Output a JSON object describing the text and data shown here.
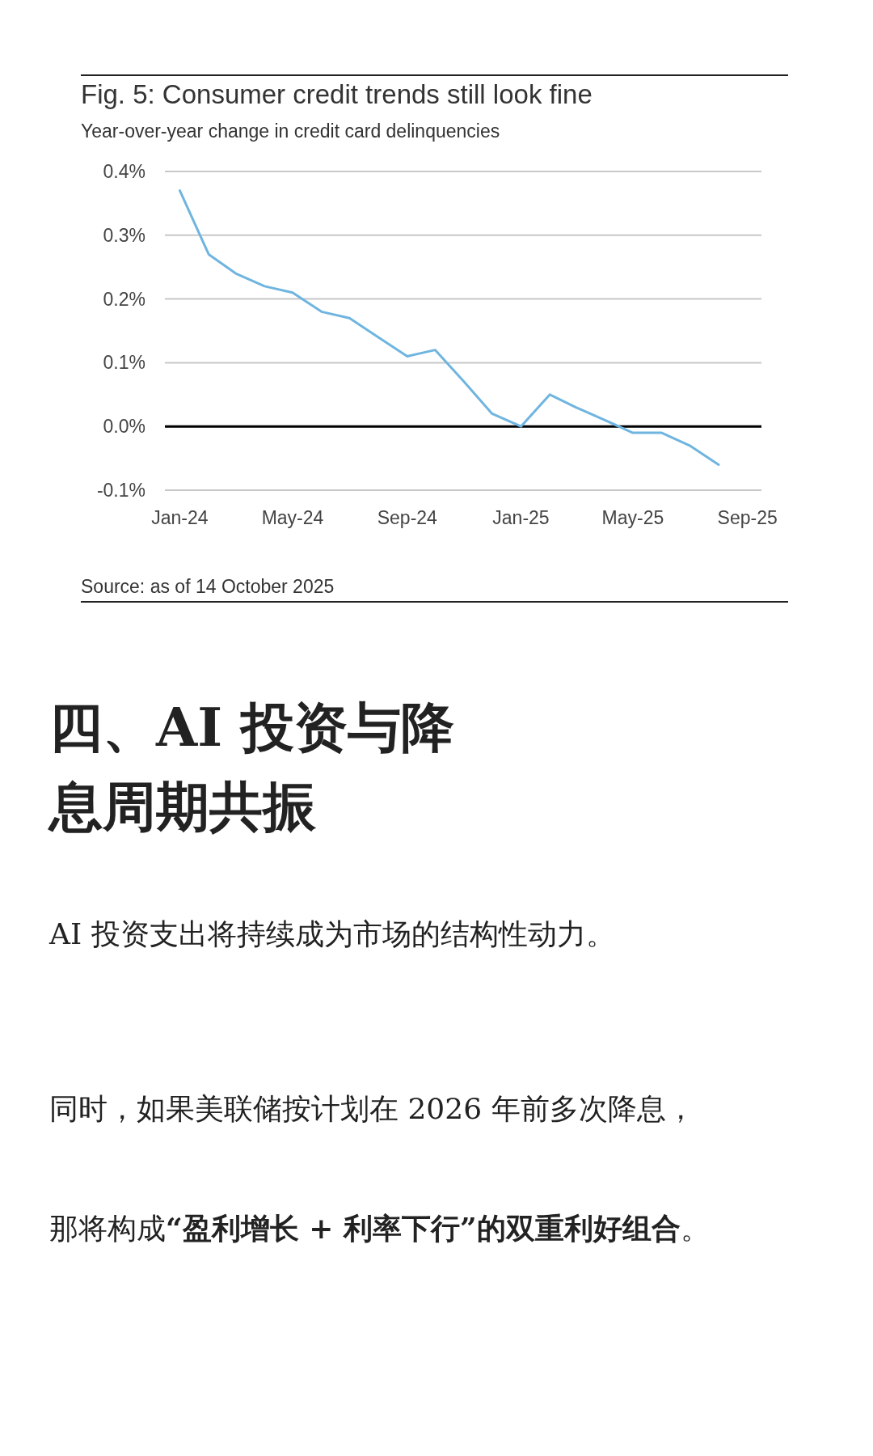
{
  "chart_data": {
    "type": "line",
    "title": "Fig. 5: Consumer credit trends still look fine",
    "subtitle": "Year-over-year change in credit card delinquencies",
    "x": [
      "2024-01",
      "2024-02",
      "2024-03",
      "2024-04",
      "2024-05",
      "2024-06",
      "2024-07",
      "2024-08",
      "2024-09",
      "2024-10",
      "2024-11",
      "2024-12",
      "2025-01",
      "2025-02",
      "2025-03",
      "2025-04",
      "2025-05",
      "2025-06",
      "2025-07",
      "2025-08"
    ],
    "series": [
      {
        "color": "#6fb5e0",
        "values": [
          0.37,
          0.27,
          0.24,
          0.22,
          0.21,
          0.18,
          0.17,
          0.14,
          0.11,
          0.12,
          0.07,
          0.02,
          0.0,
          0.05,
          0.03,
          0.01,
          -0.01,
          -0.01,
          -0.03,
          -0.06
        ]
      }
    ],
    "xlim": [
      "2023-12-16",
      "2025-09-16"
    ],
    "xticks": [
      {
        "value": "2024-01",
        "label": "Jan-24"
      },
      {
        "value": "2024-05",
        "label": "May-24"
      },
      {
        "value": "2024-09",
        "label": "Sep-24"
      },
      {
        "value": "2025-01",
        "label": "Jan-25"
      },
      {
        "value": "2025-05",
        "label": "May-25"
      },
      {
        "value": "2025-09",
        "label": "Sep-25"
      }
    ],
    "ylim": [
      -0.1,
      0.4
    ],
    "yticks": [
      {
        "value": -0.1,
        "label": "-0.1%"
      },
      {
        "value": 0.0,
        "label": "0.0%"
      },
      {
        "value": 0.1,
        "label": "0.1%"
      },
      {
        "value": 0.2,
        "label": "0.2%"
      },
      {
        "value": 0.3,
        "label": "0.3%"
      },
      {
        "value": 0.4,
        "label": "0.4%"
      }
    ],
    "grid": "y",
    "ref_lines": [
      {
        "axis": "y",
        "value": 0,
        "color": "#000000"
      }
    ],
    "annotations": [
      "Source: as of 14 October 2025",
      "四、AI 投资与降息周期共振",
      "AI 投资支出将持续成为市场的结构性动力。",
      "同时，如果美联储按计划在 2026 年前多次降息，",
      "那将构成**“盈利增长 + 利率下行”的双重利好组合**。"
    ]
  }
}
